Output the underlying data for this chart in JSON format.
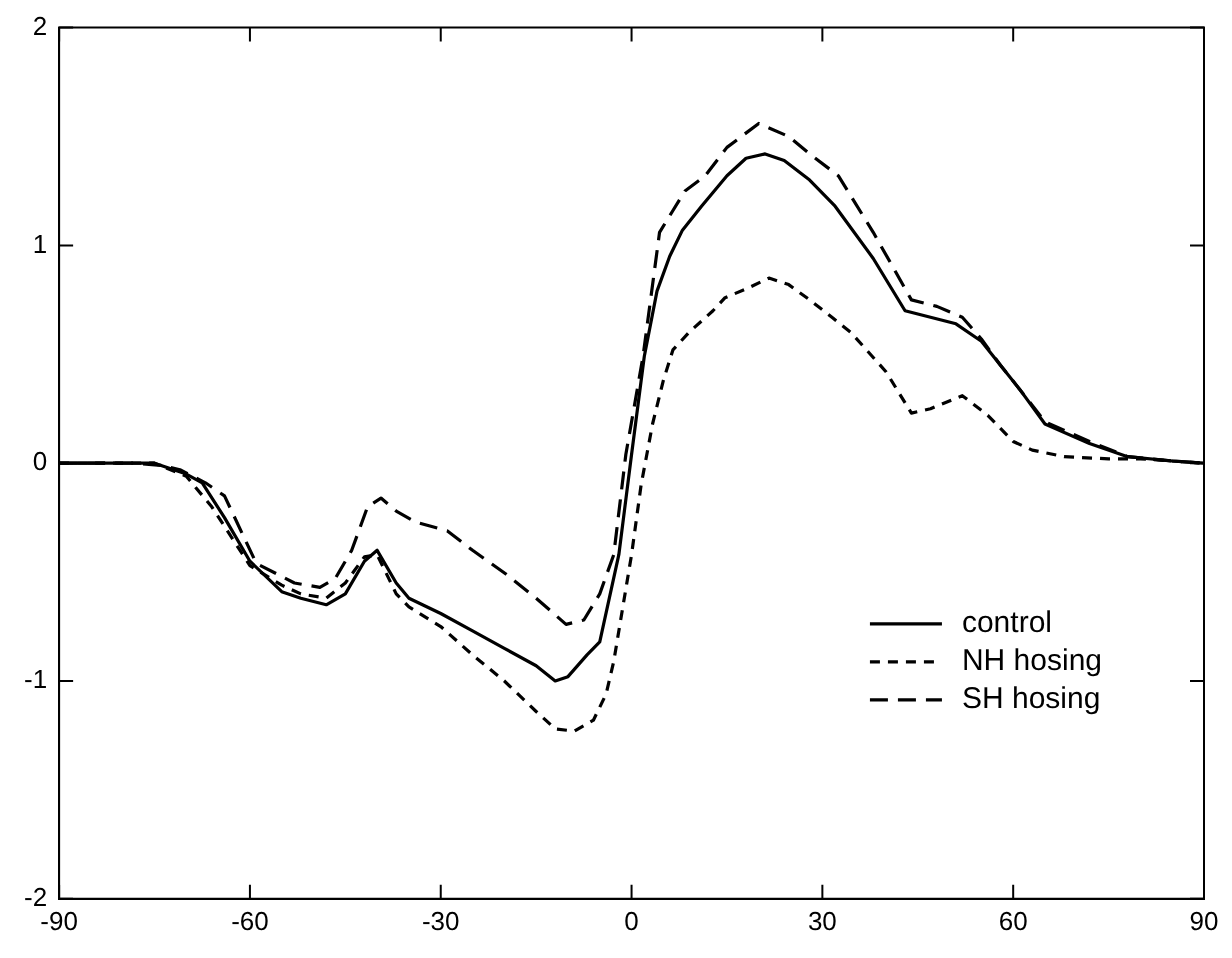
{
  "chart_data": {
    "type": "line",
    "xlim": [
      -90,
      90
    ],
    "xticks": [
      -90,
      -60,
      -30,
      0,
      30,
      60,
      90
    ],
    "ylim": [
      -2,
      2
    ],
    "yticks": [
      -2,
      -1,
      0,
      1,
      2
    ],
    "grid": false,
    "legend": "bottom right",
    "marker": "none",
    "series": [
      {
        "name": "control",
        "color": "#000000",
        "line_style": "solid",
        "x": [
          -90,
          -78,
          -75,
          -70,
          -67.5,
          -64,
          -60,
          -55,
          -52,
          -48,
          -45,
          -42,
          -40,
          -37,
          -35,
          -30,
          -25,
          -20,
          -15,
          -12,
          -10,
          -7,
          -5,
          -2,
          0,
          2,
          4,
          6,
          8,
          11,
          15,
          18,
          21,
          24,
          28,
          32,
          38,
          43,
          47,
          51,
          55,
          58,
          61,
          65,
          72,
          78,
          85,
          90
        ],
        "values": [
          0,
          0,
          0,
          -0.05,
          -0.09,
          -0.25,
          -0.45,
          -0.59,
          -0.62,
          -0.65,
          -0.6,
          -0.45,
          -0.4,
          -0.55,
          -0.62,
          -0.69,
          -0.77,
          -0.85,
          -0.93,
          -1.0,
          -0.98,
          -0.88,
          -0.82,
          -0.42,
          0.04,
          0.49,
          0.79,
          0.95,
          1.07,
          1.18,
          1.32,
          1.4,
          1.42,
          1.39,
          1.3,
          1.18,
          0.94,
          0.7,
          0.67,
          0.64,
          0.56,
          0.45,
          0.34,
          0.18,
          0.09,
          0.03,
          0.01,
          0
        ]
      },
      {
        "name": "NH hosing",
        "color": "#000000",
        "line_style": "dotted",
        "x": [
          -90,
          -78,
          -75,
          -70,
          -66,
          -60,
          -55,
          -52,
          -48,
          -45,
          -42,
          -40,
          -37,
          -35,
          -30,
          -25,
          -20,
          -15,
          -12,
          -9,
          -6,
          -4,
          -2.8,
          0,
          1.5,
          3.3,
          5,
          6.5,
          9,
          12.8,
          14.7,
          18,
          21.6,
          24.7,
          28,
          31.5,
          34.5,
          40,
          44,
          47,
          52,
          56,
          60,
          63,
          68,
          75,
          80,
          90
        ],
        "values": [
          0,
          0,
          0,
          -0.06,
          -0.2,
          -0.47,
          -0.56,
          -0.6,
          -0.62,
          -0.55,
          -0.43,
          -0.42,
          -0.6,
          -0.66,
          -0.75,
          -0.88,
          -1.0,
          -1.14,
          -1.22,
          -1.23,
          -1.18,
          -1.06,
          -0.91,
          -0.42,
          -0.1,
          0.18,
          0.38,
          0.52,
          0.6,
          0.7,
          0.76,
          0.8,
          0.85,
          0.82,
          0.75,
          0.67,
          0.6,
          0.42,
          0.23,
          0.25,
          0.31,
          0.22,
          0.1,
          0.06,
          0.03,
          0.02,
          0.02,
          0
        ]
      },
      {
        "name": "SH hosing",
        "color": "#000000",
        "line_style": "dashed",
        "x": [
          -90,
          -78,
          -74,
          -71,
          -67,
          -64,
          -59,
          -53,
          -49,
          -46.6,
          -44,
          -41.5,
          -39.4,
          -37,
          -34,
          -29,
          -25,
          -19.7,
          -15,
          -10.3,
          -7.5,
          -5,
          -2.8,
          -0.9,
          1.8,
          4.4,
          8.4,
          11.6,
          15,
          20,
          24.7,
          28,
          32.5,
          38,
          44,
          48,
          52,
          55,
          58,
          61,
          65,
          72,
          78,
          85,
          90
        ],
        "values": [
          0,
          0,
          -0.01,
          -0.03,
          -0.09,
          -0.15,
          -0.46,
          -0.55,
          -0.57,
          -0.53,
          -0.4,
          -0.2,
          -0.16,
          -0.22,
          -0.27,
          -0.31,
          -0.4,
          -0.51,
          -0.62,
          -0.74,
          -0.72,
          -0.6,
          -0.42,
          0.04,
          0.49,
          1.06,
          1.25,
          1.32,
          1.45,
          1.56,
          1.5,
          1.42,
          1.32,
          1.06,
          0.75,
          0.72,
          0.67,
          0.57,
          0.45,
          0.34,
          0.19,
          0.1,
          0.03,
          0.01,
          0
        ]
      }
    ]
  }
}
